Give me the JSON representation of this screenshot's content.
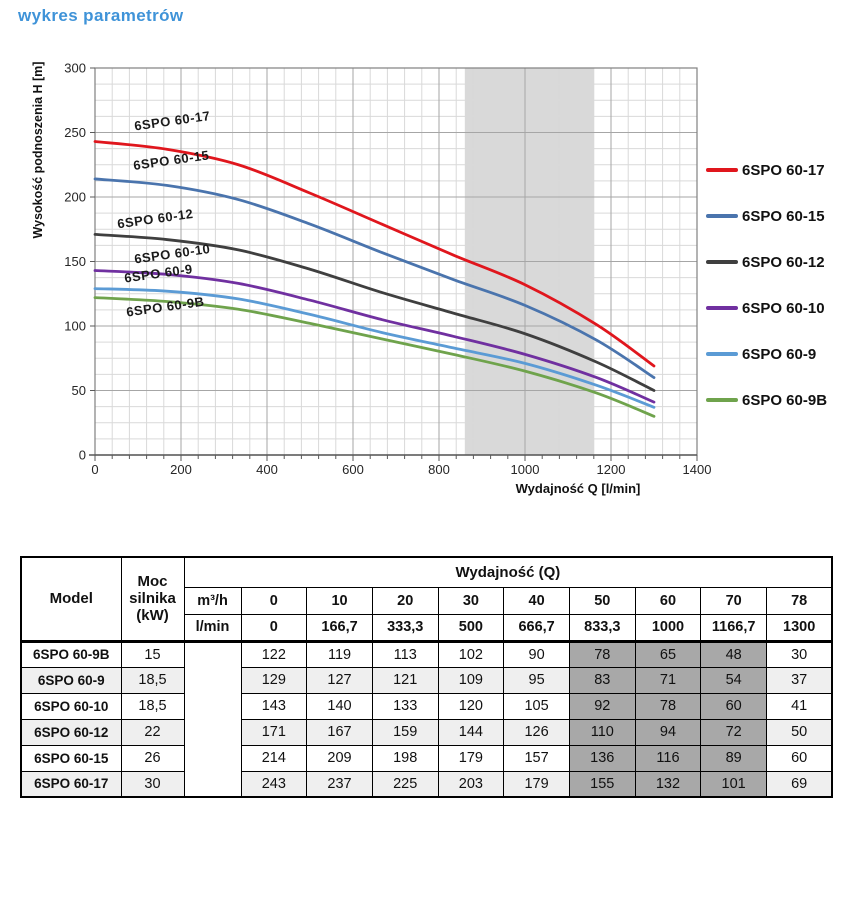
{
  "title": "wykres parametrów",
  "title_color": "#3f93d8",
  "chart_data": {
    "type": "line",
    "xlabel": "Wydajność Q [l/min]",
    "ylabel": "Wysokość podnoszenia H [m]",
    "xlim": [
      0,
      1400
    ],
    "ylim": [
      0,
      300
    ],
    "x_major_ticks": [
      0,
      200,
      400,
      600,
      800,
      1000,
      1200,
      1400
    ],
    "y_major_ticks": [
      0,
      50,
      100,
      150,
      200,
      250,
      300
    ],
    "x_minor_step": 40,
    "y_minor_step": 12.5,
    "grid": true,
    "legend_position": "right",
    "highlight_band": {
      "x_from": 860,
      "x_to": 1160,
      "color": "#d9d9d9"
    },
    "x": [
      0,
      166.7,
      333.3,
      500,
      666.7,
      833.3,
      1000,
      1166.7,
      1300
    ],
    "series": [
      {
        "name": "6SPO 60-17",
        "color": "#e0161d",
        "values": [
          243,
          237,
          225,
          203,
          179,
          155,
          132,
          101,
          69
        ],
        "label_offset": [
          40,
          -11
        ]
      },
      {
        "name": "6SPO 60-15",
        "color": "#4a74ad",
        "values": [
          214,
          209,
          198,
          179,
          157,
          136,
          116,
          89,
          60
        ],
        "label_offset": [
          39,
          -9
        ]
      },
      {
        "name": "6SPO 60-12",
        "color": "#3f3f3f",
        "values": [
          171,
          167,
          159,
          144,
          126,
          110,
          94,
          72,
          50
        ],
        "label_offset": [
          23,
          -6
        ]
      },
      {
        "name": "6SPO 60-10",
        "color": "#7030a0",
        "values": [
          143,
          140,
          133,
          120,
          105,
          92,
          78,
          60,
          41
        ],
        "label_offset": [
          40,
          -7
        ]
      },
      {
        "name": "6SPO 60-9",
        "color": "#5b9bd5",
        "values": [
          129,
          127,
          121,
          109,
          95,
          83,
          71,
          54,
          37
        ],
        "label_offset": [
          30,
          -6
        ]
      },
      {
        "name": "6SPO 60-9B",
        "color": "#6fa34c",
        "values": [
          122,
          119,
          113,
          102,
          90,
          78,
          65,
          48,
          30
        ],
        "label_offset": [
          32,
          19
        ]
      }
    ]
  },
  "table": {
    "header": {
      "model": "Model",
      "power": "Moc silnika (kW)",
      "flow_group": "Wydajność (Q)",
      "unit_row1_label": "m³/h",
      "unit_row2_label": "l/min",
      "m3h_values": [
        "0",
        "10",
        "20",
        "30",
        "40",
        "50",
        "60",
        "70",
        "78"
      ],
      "lmin_values": [
        "0",
        "166,7",
        "333,3",
        "500",
        "666,7",
        "833,3",
        "1000",
        "1166,7",
        "1300"
      ]
    },
    "highlight_columns": [
      5,
      6,
      7
    ],
    "rows": [
      {
        "model": "6SPO 60-9B",
        "power": "15",
        "values": [
          "122",
          "119",
          "113",
          "102",
          "90",
          "78",
          "65",
          "48",
          "30"
        ]
      },
      {
        "model": "6SPO 60-9",
        "power": "18,5",
        "values": [
          "129",
          "127",
          "121",
          "109",
          "95",
          "83",
          "71",
          "54",
          "37"
        ]
      },
      {
        "model": "6SPO 60-10",
        "power": "18,5",
        "values": [
          "143",
          "140",
          "133",
          "120",
          "105",
          "92",
          "78",
          "60",
          "41"
        ]
      },
      {
        "model": "6SPO 60-12",
        "power": "22",
        "values": [
          "171",
          "167",
          "159",
          "144",
          "126",
          "110",
          "94",
          "72",
          "50"
        ]
      },
      {
        "model": "6SPO 60-15",
        "power": "26",
        "values": [
          "214",
          "209",
          "198",
          "179",
          "157",
          "136",
          "116",
          "89",
          "60"
        ]
      },
      {
        "model": "6SPO 60-17",
        "power": "30",
        "values": [
          "243",
          "237",
          "225",
          "203",
          "179",
          "155",
          "132",
          "101",
          "69"
        ]
      }
    ]
  }
}
